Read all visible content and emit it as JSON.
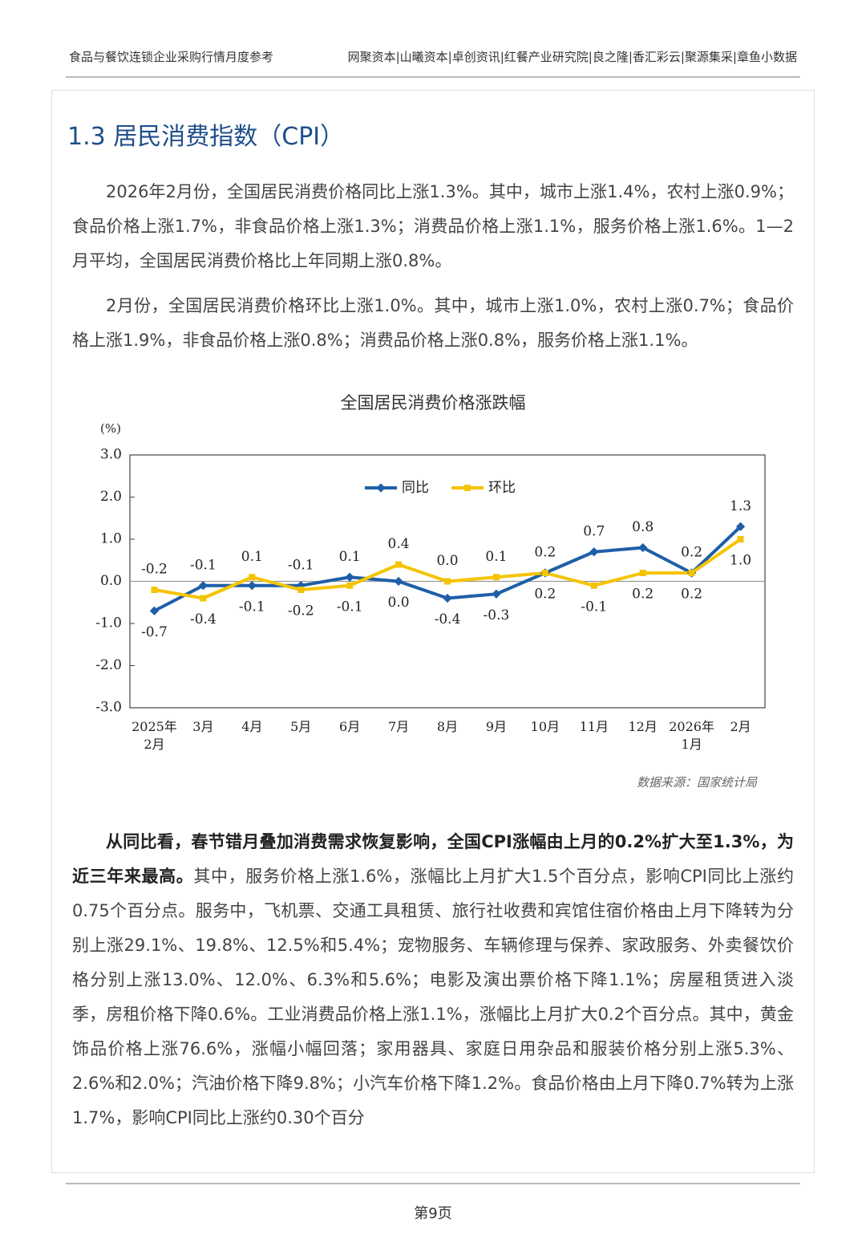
{
  "header": {
    "left": "食品与餐饮连锁企业采购行情月度参考",
    "right": "网聚资本|山曦资本|卓创资讯|红餐产业研究院|良之隆|香汇彩云|聚源集采|章鱼小数据"
  },
  "section_title": "1.3 居民消费指数（CPI）",
  "paragraphs": [
    "2026年2月份，全国居民消费价格同比上涨1.3%。其中，城市上涨1.4%，农村上涨0.9%；食品价格上涨1.7%，非食品价格上涨1.3%；消费品价格上涨1.1%，服务价格上涨1.6%。1—2月平均，全国居民消费价格比上年同期上涨0.8%。",
    "2月份，全国居民消费价格环比上涨1.0%。其中，城市上涨1.0%，农村上涨0.7%；食品价格上涨1.9%，非食品价格上涨0.8%；消费品价格上涨0.8%，服务价格上涨1.1%。",
    {
      "bold": "从同比看，春节错月叠加消费需求恢复影响，全国CPI涨幅由上月的0.2%扩大至1.3%，为近三年来最高。",
      "text": "其中，服务价格上涨1.6%，涨幅比上月扩大1.5个百分点，影响CPI同比上涨约0.75个百分点。服务中，飞机票、交通工具租赁、旅行社收费和宾馆住宿价格由上月下降转为分别上涨29.1%、19.8%、12.5%和5.4%；宠物服务、车辆修理与保养、家政服务、外卖餐饮价格分别上涨13.0%、12.0%、6.3%和5.6%；电影及演出票价格下降1.1%；房屋租赁进入淡季，房租价格下降0.6%。工业消费品价格上涨1.1%，涨幅比上月扩大0.2个百分点。其中，黄金饰品价格上涨76.6%，涨幅小幅回落；家用器具、家庭日用杂品和服装价格分别上涨5.3%、2.6%和2.0%；汽油价格下降9.8%；小汽车价格下降1.2%。食品价格由上月下降0.7%转为上涨1.7%，影响CPI同比上涨约0.30个百分"
    }
  ],
  "chart_data": {
    "type": "line",
    "title": "全国居民消费价格涨跌幅",
    "y_label": "(%)",
    "categories": [
      "2025年\n2月",
      "3月",
      "4月",
      "5月",
      "6月",
      "7月",
      "8月",
      "9月",
      "10月",
      "11月",
      "12月",
      "2026年\n1月",
      "2月"
    ],
    "series": [
      {
        "name": "同比",
        "color": "#1f5fa8",
        "values": [
          -0.7,
          -0.1,
          -0.1,
          -0.1,
          0.1,
          0,
          -0.4,
          -0.3,
          0.2,
          0.7,
          0.8,
          0.2,
          1.3
        ],
        "value_labels": [
          "-0.7",
          "-0.1",
          "-0.1",
          "-0.1",
          "0.1",
          "0.0",
          "-0.4",
          "-0.3",
          "0.2",
          "0.7",
          "0.8",
          "0.2",
          "1.3"
        ]
      },
      {
        "name": "环比",
        "color": "#f5c400",
        "values": [
          -0.2,
          -0.4,
          0.1,
          -0.2,
          -0.1,
          0.4,
          0,
          0.1,
          0.2,
          -0.1,
          0.2,
          0.2,
          1
        ],
        "value_labels": [
          "-0.2",
          "-0.4",
          "0.1",
          "-0.2",
          "-0.1",
          "0.4",
          "0.0",
          "0.1",
          "0.2",
          "-0.1",
          "0.2",
          "0.2",
          "1.0"
        ]
      }
    ],
    "ylim": [
      -3,
      3
    ],
    "yticks": [
      {
        "value": 3,
        "label": "3.0"
      },
      {
        "value": 2,
        "label": "2.0"
      },
      {
        "value": 1,
        "label": "1.0"
      },
      {
        "value": 0,
        "label": "0.0"
      },
      {
        "value": -1,
        "label": "-1.0"
      },
      {
        "value": -2,
        "label": "-2.0"
      },
      {
        "value": -3,
        "label": "-3.0"
      }
    ],
    "legend": "top"
  },
  "source": "数据来源：国家统计局",
  "footer": "第9页"
}
